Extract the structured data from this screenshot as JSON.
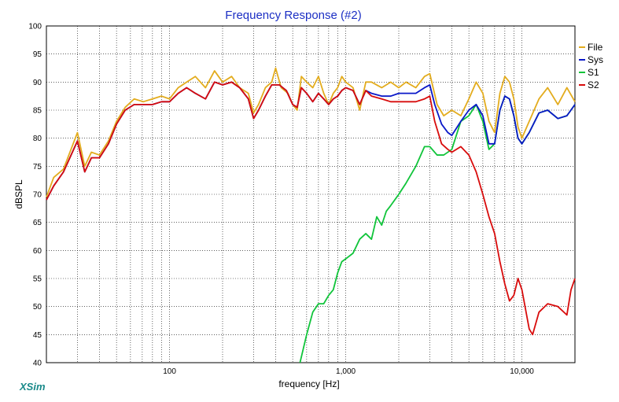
{
  "chart_data": {
    "type": "line",
    "title": "Frequency Response (#2)",
    "xlabel": "frequency [Hz]",
    "ylabel": "dBSPL",
    "xscale": "log",
    "xlim": [
      20,
      20000
    ],
    "ylim": [
      40,
      100
    ],
    "grid": true,
    "legend_position": "right",
    "brand": "XSim",
    "x_tick_labels": [
      {
        "value": 100,
        "label": "100"
      },
      {
        "value": 1000,
        "label": "1,000"
      },
      {
        "value": 10000,
        "label": "10,000"
      }
    ],
    "y_tick_labels": [
      "40",
      "45",
      "50",
      "55",
      "60",
      "65",
      "70",
      "75",
      "80",
      "85",
      "90",
      "95",
      "100"
    ],
    "series": [
      {
        "name": "File",
        "color": "#e3ac1e",
        "points": [
          [
            20,
            69.5
          ],
          [
            22,
            73
          ],
          [
            25,
            74.5
          ],
          [
            30,
            81
          ],
          [
            33,
            75
          ],
          [
            36,
            77.5
          ],
          [
            40,
            77
          ],
          [
            45,
            79.5
          ],
          [
            50,
            83
          ],
          [
            56,
            85.5
          ],
          [
            63,
            87
          ],
          [
            71,
            86.5
          ],
          [
            80,
            87
          ],
          [
            90,
            87.5
          ],
          [
            100,
            87
          ],
          [
            112,
            89
          ],
          [
            125,
            90
          ],
          [
            140,
            91
          ],
          [
            160,
            89
          ],
          [
            180,
            92
          ],
          [
            200,
            90
          ],
          [
            225,
            91
          ],
          [
            250,
            89
          ],
          [
            280,
            88
          ],
          [
            300,
            84.5
          ],
          [
            320,
            86
          ],
          [
            350,
            89
          ],
          [
            380,
            90
          ],
          [
            400,
            92.5
          ],
          [
            430,
            89
          ],
          [
            470,
            88
          ],
          [
            500,
            86
          ],
          [
            530,
            85
          ],
          [
            560,
            91
          ],
          [
            600,
            90
          ],
          [
            650,
            89
          ],
          [
            700,
            91
          ],
          [
            750,
            88
          ],
          [
            800,
            86
          ],
          [
            850,
            88
          ],
          [
            900,
            89
          ],
          [
            950,
            91
          ],
          [
            1000,
            90
          ],
          [
            1100,
            89
          ],
          [
            1200,
            85
          ],
          [
            1300,
            90
          ],
          [
            1400,
            90
          ],
          [
            1600,
            89
          ],
          [
            1800,
            90
          ],
          [
            2000,
            89
          ],
          [
            2200,
            90
          ],
          [
            2500,
            89
          ],
          [
            2800,
            91
          ],
          [
            3000,
            91.5
          ],
          [
            3300,
            86
          ],
          [
            3600,
            84
          ],
          [
            4000,
            85
          ],
          [
            4500,
            84
          ],
          [
            5000,
            87
          ],
          [
            5500,
            90
          ],
          [
            6000,
            88
          ],
          [
            6500,
            83
          ],
          [
            7000,
            81
          ],
          [
            7500,
            88
          ],
          [
            8000,
            91
          ],
          [
            8500,
            90
          ],
          [
            9000,
            87
          ],
          [
            9500,
            82
          ],
          [
            10000,
            80
          ],
          [
            11000,
            83
          ],
          [
            12500,
            87
          ],
          [
            14000,
            89
          ],
          [
            16000,
            86
          ],
          [
            18000,
            89
          ],
          [
            20000,
            86.5
          ]
        ]
      },
      {
        "name": "Sys",
        "color": "#0a18c8",
        "points": [
          [
            20,
            69
          ],
          [
            22,
            71.5
          ],
          [
            25,
            74
          ],
          [
            30,
            79.5
          ],
          [
            33,
            74
          ],
          [
            36,
            76.5
          ],
          [
            40,
            76.5
          ],
          [
            45,
            79
          ],
          [
            50,
            82.5
          ],
          [
            56,
            85
          ],
          [
            63,
            86
          ],
          [
            71,
            86
          ],
          [
            80,
            86
          ],
          [
            90,
            86.5
          ],
          [
            100,
            86.5
          ],
          [
            112,
            88
          ],
          [
            125,
            89
          ],
          [
            140,
            88
          ],
          [
            160,
            87
          ],
          [
            180,
            90
          ],
          [
            200,
            89.5
          ],
          [
            225,
            90
          ],
          [
            250,
            89
          ],
          [
            280,
            87
          ],
          [
            300,
            83.5
          ],
          [
            320,
            85
          ],
          [
            350,
            87.5
          ],
          [
            380,
            89.5
          ],
          [
            420,
            89.5
          ],
          [
            460,
            88.5
          ],
          [
            500,
            86
          ],
          [
            530,
            85.5
          ],
          [
            560,
            89
          ],
          [
            600,
            88
          ],
          [
            650,
            86.5
          ],
          [
            700,
            88
          ],
          [
            750,
            87
          ],
          [
            800,
            86
          ],
          [
            850,
            87
          ],
          [
            900,
            87.5
          ],
          [
            950,
            88.5
          ],
          [
            1000,
            89
          ],
          [
            1100,
            88.5
          ],
          [
            1200,
            86
          ],
          [
            1300,
            88.5
          ],
          [
            1400,
            88
          ],
          [
            1600,
            87.5
          ],
          [
            1800,
            87.5
          ],
          [
            2000,
            88
          ],
          [
            2200,
            88
          ],
          [
            2500,
            88
          ],
          [
            2800,
            89
          ],
          [
            3000,
            89.5
          ],
          [
            3200,
            86
          ],
          [
            3500,
            82.5
          ],
          [
            3800,
            81
          ],
          [
            4000,
            80.5
          ],
          [
            4500,
            83
          ],
          [
            5000,
            85
          ],
          [
            5500,
            86
          ],
          [
            6000,
            84
          ],
          [
            6500,
            79
          ],
          [
            7000,
            79
          ],
          [
            7500,
            85
          ],
          [
            8000,
            87.5
          ],
          [
            8500,
            87
          ],
          [
            9000,
            84
          ],
          [
            9500,
            80
          ],
          [
            10000,
            79
          ],
          [
            11000,
            81
          ],
          [
            12500,
            84.5
          ],
          [
            14000,
            85
          ],
          [
            16000,
            83.5
          ],
          [
            18000,
            84
          ],
          [
            20000,
            86
          ]
        ]
      },
      {
        "name": "S1",
        "color": "#10c43a",
        "points": [
          [
            550,
            40
          ],
          [
            600,
            45
          ],
          [
            650,
            49
          ],
          [
            700,
            50.5
          ],
          [
            750,
            50.5
          ],
          [
            800,
            52
          ],
          [
            850,
            53
          ],
          [
            900,
            56
          ],
          [
            950,
            58
          ],
          [
            1000,
            58.5
          ],
          [
            1100,
            59.5
          ],
          [
            1200,
            62
          ],
          [
            1300,
            63
          ],
          [
            1400,
            62
          ],
          [
            1500,
            66
          ],
          [
            1600,
            64.5
          ],
          [
            1700,
            67
          ],
          [
            1800,
            68
          ],
          [
            2000,
            70
          ],
          [
            2200,
            72
          ],
          [
            2500,
            75
          ],
          [
            2800,
            78.5
          ],
          [
            3000,
            78.5
          ],
          [
            3300,
            77
          ],
          [
            3600,
            77
          ],
          [
            4000,
            78
          ],
          [
            4500,
            83
          ],
          [
            5000,
            84
          ],
          [
            5500,
            86
          ],
          [
            6000,
            83
          ],
          [
            6500,
            78
          ],
          [
            7000,
            79
          ],
          [
            7500,
            85
          ],
          [
            8000,
            87.5
          ],
          [
            8500,
            87
          ],
          [
            9000,
            84
          ],
          [
            9500,
            80
          ],
          [
            10000,
            79
          ],
          [
            11000,
            81
          ],
          [
            12500,
            84.5
          ],
          [
            14000,
            85
          ],
          [
            16000,
            83.5
          ],
          [
            18000,
            84
          ],
          [
            20000,
            86
          ]
        ]
      },
      {
        "name": "S2",
        "color": "#d80c0c",
        "points": [
          [
            20,
            69
          ],
          [
            22,
            71.5
          ],
          [
            25,
            74
          ],
          [
            30,
            79.5
          ],
          [
            33,
            74
          ],
          [
            36,
            76.5
          ],
          [
            40,
            76.5
          ],
          [
            45,
            79
          ],
          [
            50,
            82.5
          ],
          [
            56,
            85
          ],
          [
            63,
            86
          ],
          [
            71,
            86
          ],
          [
            80,
            86
          ],
          [
            90,
            86.5
          ],
          [
            100,
            86.5
          ],
          [
            112,
            88
          ],
          [
            125,
            89
          ],
          [
            140,
            88
          ],
          [
            160,
            87
          ],
          [
            180,
            90
          ],
          [
            200,
            89.5
          ],
          [
            225,
            90
          ],
          [
            250,
            89
          ],
          [
            280,
            87
          ],
          [
            300,
            83.5
          ],
          [
            320,
            85
          ],
          [
            350,
            87.5
          ],
          [
            380,
            89.5
          ],
          [
            420,
            89.5
          ],
          [
            460,
            88.5
          ],
          [
            500,
            86
          ],
          [
            530,
            85.5
          ],
          [
            560,
            89
          ],
          [
            600,
            88
          ],
          [
            650,
            86.5
          ],
          [
            700,
            88
          ],
          [
            750,
            87
          ],
          [
            800,
            86
          ],
          [
            850,
            87
          ],
          [
            900,
            87.5
          ],
          [
            950,
            88.5
          ],
          [
            1000,
            89
          ],
          [
            1100,
            88.5
          ],
          [
            1200,
            86
          ],
          [
            1300,
            88.5
          ],
          [
            1400,
            87.5
          ],
          [
            1600,
            87
          ],
          [
            1800,
            86.5
          ],
          [
            2000,
            86.5
          ],
          [
            2200,
            86.5
          ],
          [
            2500,
            86.5
          ],
          [
            2800,
            87
          ],
          [
            3000,
            87.5
          ],
          [
            3200,
            83
          ],
          [
            3500,
            79
          ],
          [
            3800,
            78
          ],
          [
            4000,
            77.5
          ],
          [
            4500,
            78.5
          ],
          [
            5000,
            77
          ],
          [
            5500,
            74
          ],
          [
            6000,
            70
          ],
          [
            6500,
            66
          ],
          [
            7000,
            63
          ],
          [
            7500,
            58
          ],
          [
            8000,
            54
          ],
          [
            8500,
            51
          ],
          [
            9000,
            52
          ],
          [
            9500,
            55
          ],
          [
            10000,
            53
          ],
          [
            11000,
            46
          ],
          [
            11500,
            45
          ],
          [
            12500,
            49
          ],
          [
            14000,
            50.5
          ],
          [
            16000,
            50
          ],
          [
            18000,
            48.5
          ],
          [
            19000,
            53
          ],
          [
            20000,
            55
          ]
        ]
      }
    ]
  }
}
